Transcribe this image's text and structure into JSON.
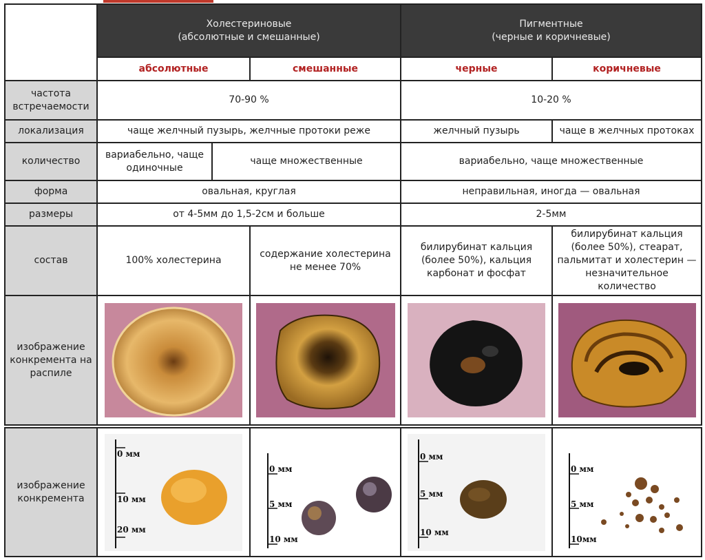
{
  "header": {
    "cholesterol": {
      "title": "Холестериновые",
      "subtitle": "(абсолютные и смешанные)"
    },
    "pigment": {
      "title": "Пигментные",
      "subtitle": "(черные и коричневые)"
    }
  },
  "subheaders": [
    "абсолютные",
    "смешанные",
    "черные",
    "коричневые"
  ],
  "rows": {
    "frequency": {
      "label": "частота встречаемости",
      "cholesterol": "70-90 %",
      "pigment": "10-20 %"
    },
    "location": {
      "label": "локализация",
      "cholesterol": "чаще желчный пузырь, желчные протоки реже",
      "black": "желчный пузырь",
      "brown": "чаще в желчных протоках"
    },
    "quantity": {
      "label": "количество",
      "absolute": "вариабельно, чаще одиночные",
      "mixed": "чаще множественные",
      "pigment": "вариабельно, чаще множественные"
    },
    "shape": {
      "label": "форма",
      "cholesterol": "овальная, круглая",
      "pigment": "неправильная, иногда — овальная"
    },
    "size": {
      "label": "размеры",
      "cholesterol": "от 4-5мм до 1,5-2см и больше",
      "pigment": "2-5мм"
    },
    "composition": {
      "label": "состав",
      "absolute": "100% холестерина",
      "mixed": "содержание холестерина не менее 70%",
      "black": "билирубинат кальция (более 50%), кальция карбонат и фосфат",
      "brown": "билирубинат кальция (более 50%), стеарат, пальмитат и холестерин — незначительное количество"
    },
    "cut_image": {
      "label": "изображение конкремента на распиле"
    },
    "stone_image": {
      "label": "изображение конкремента"
    }
  },
  "scales": {
    "absolute": [
      "0 мм",
      "10 мм",
      "20 мм"
    ],
    "mixed": [
      "0 мм",
      "5 мм",
      "10 мм"
    ],
    "black": [
      "0 мм",
      "5 мм",
      "10 мм"
    ],
    "brown": [
      "0 мм",
      "5 мм",
      "10мм"
    ]
  },
  "colors": {
    "header_bg": "#3a3a3a",
    "accent_red": "#b22222",
    "row_header_bg": "#d6d6d6",
    "photo_bg": "#d9a8b8"
  }
}
